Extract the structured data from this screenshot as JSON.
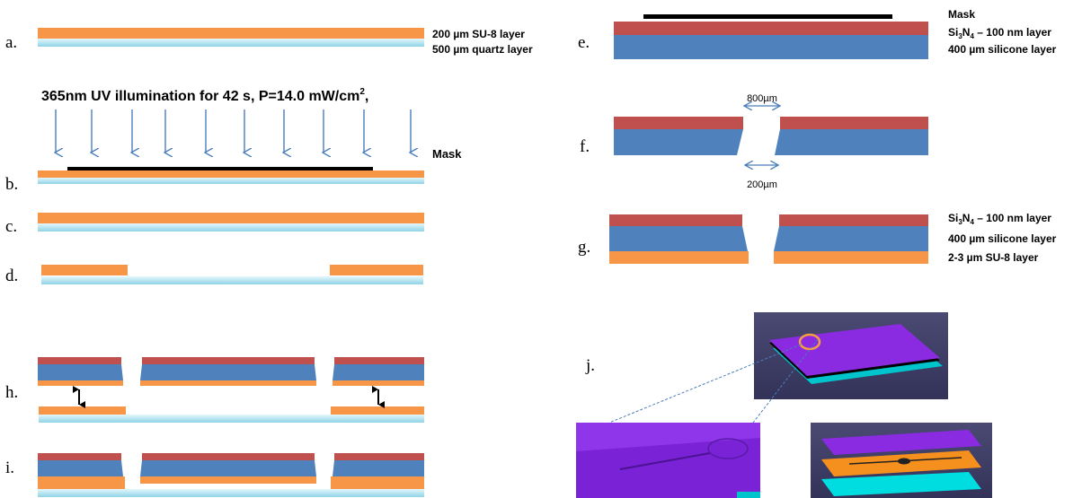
{
  "colors": {
    "su8": "#f79646",
    "quartz_top": "#c6eef8",
    "quartz_bottom": "#8fd3e6",
    "silicone": "#4f81bd",
    "nitride": "#c0504d",
    "mask": "#000000",
    "arrow": "#4a7ebb",
    "render_bg": "#3f3f63",
    "render_purple": "#8a2be2",
    "render_cyan": "#00d0d8"
  },
  "panels": {
    "a": {
      "label": "a.",
      "layer1": "200 µm SU-8 layer",
      "layer2": "500 µm quartz layer"
    },
    "b": {
      "label": "b.",
      "uv_text": "365nm UV illumination for 42 s, P=14.0 mW/cm",
      "uv_sup": "2",
      "uv_tail": ",",
      "mask": "Mask"
    },
    "c": {
      "label": "c."
    },
    "d": {
      "label": "d."
    },
    "e": {
      "label": "e.",
      "mask": "Mask",
      "si_prefix": "Si",
      "si_sub1": "3",
      "si_mid": "N",
      "si_sub2": "4",
      "si_suffix": " – 100 nm layer",
      "silicone": "400 µm silicone layer"
    },
    "f": {
      "label": "f.",
      "top_dim": "800µm",
      "bottom_dim": "200µm"
    },
    "g": {
      "label": "g.",
      "si_prefix": "Si",
      "si_sub1": "3",
      "si_mid": "N",
      "si_sub2": "4",
      "si_suffix": " – 100 nm layer",
      "silicone": "400 µm silicone layer",
      "su8": "2-3 µm SU-8 layer"
    },
    "h": {
      "label": "h."
    },
    "i": {
      "label": "i."
    },
    "j": {
      "label": "j."
    }
  }
}
